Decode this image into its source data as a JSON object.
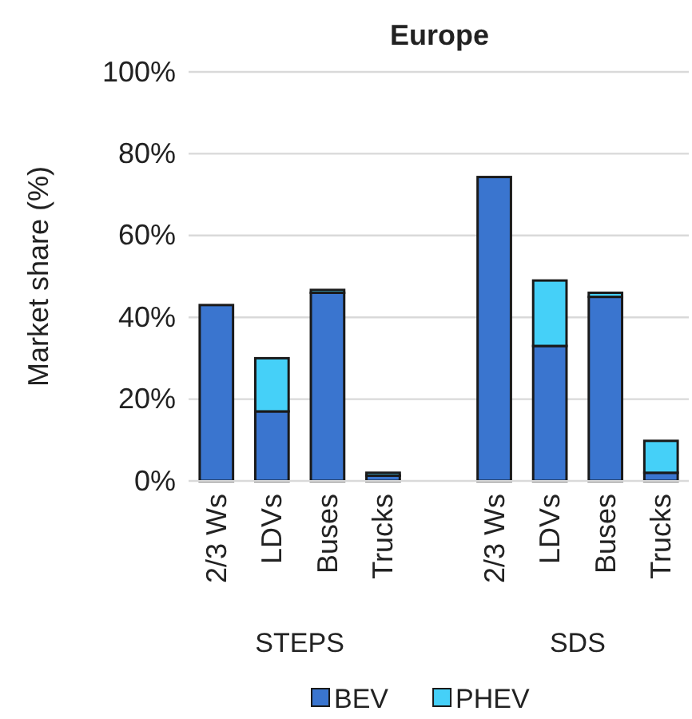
{
  "chart_data": {
    "type": "bar",
    "title": "Europe",
    "ylabel": "Market share (%)",
    "stacked": true,
    "categories": [
      "2/3 Ws",
      "LDVs",
      "Buses",
      "Trucks",
      null,
      "2/3 Ws",
      "LDVs",
      "Buses",
      "Trucks"
    ],
    "series": [
      {
        "name": "BEV",
        "color": "#3a75cf",
        "values": [
          43,
          17,
          46,
          1.3,
          null,
          74.3,
          33,
          45,
          2
        ]
      },
      {
        "name": "PHEV",
        "color": "#45d0f8",
        "values": [
          0,
          13,
          0.7,
          0.7,
          null,
          0,
          16,
          1,
          7.8
        ]
      }
    ],
    "ylim": [
      0,
      100
    ],
    "yticks": [
      {
        "value": 0,
        "label": "0%"
      },
      {
        "value": 20,
        "label": "20%"
      },
      {
        "value": 40,
        "label": "40%"
      },
      {
        "value": 60,
        "label": "60%"
      },
      {
        "value": 80,
        "label": "80%"
      },
      {
        "value": 100,
        "label": "100%"
      }
    ],
    "grid": "y",
    "legend": "bottom",
    "annotations": [
      "STEPS",
      "SDS"
    ]
  }
}
